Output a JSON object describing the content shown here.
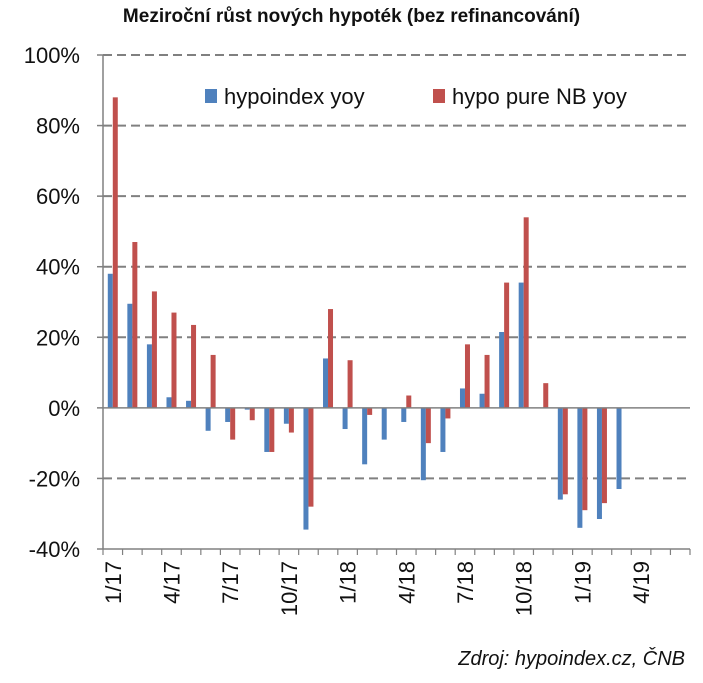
{
  "chart_data": {
    "type": "bar",
    "title": "Meziroční růst nových hypoték (bez refinancování)",
    "xlabel": "",
    "ylabel": "",
    "ylim": [
      -40,
      100
    ],
    "yticks": [
      "100%",
      "80%",
      "60%",
      "40%",
      "20%",
      "0%",
      "-20%",
      "-40%"
    ],
    "ytick_values": [
      100,
      80,
      60,
      40,
      20,
      0,
      -20,
      -40
    ],
    "grid": true,
    "legend_position": "top-right",
    "categories": [
      "1/17",
      "2/17",
      "3/17",
      "4/17",
      "5/17",
      "6/17",
      "7/17",
      "8/17",
      "9/17",
      "10/17",
      "11/17",
      "12/17",
      "1/18",
      "2/18",
      "3/18",
      "4/18",
      "5/18",
      "6/18",
      "7/18",
      "8/18",
      "9/18",
      "10/18",
      "11/18",
      "12/18",
      "1/19",
      "2/19",
      "3/19",
      "4/19",
      "5/19",
      "6/19"
    ],
    "xtick_labels": [
      "1/17",
      "4/17",
      "7/17",
      "10/17",
      "1/18",
      "4/18",
      "7/18",
      "10/18",
      "1/19",
      "4/19"
    ],
    "xtick_indices": [
      0,
      3,
      6,
      9,
      12,
      15,
      18,
      21,
      24,
      27
    ],
    "series": [
      {
        "name": "hypoindex yoy",
        "color": "#4F81BD",
        "values": [
          38,
          29.5,
          18,
          3,
          2,
          -6.5,
          -4,
          -0.5,
          -12.5,
          -4.5,
          -34.5,
          14,
          -6,
          -16,
          -9,
          -4,
          -20.5,
          -12.5,
          5.5,
          4,
          21.5,
          35.5,
          null,
          -26,
          -34,
          -31.5,
          -23,
          null,
          null,
          null
        ]
      },
      {
        "name": "hypo pure NB yoy",
        "color": "#C0504D",
        "values": [
          88,
          47,
          33,
          27,
          23.5,
          15,
          -9,
          -3.5,
          -12.5,
          -7,
          -28,
          28,
          13.5,
          -2,
          null,
          3.5,
          -10,
          -3,
          18,
          15,
          35.5,
          54,
          7,
          -24.5,
          -29,
          -27,
          null,
          null,
          null,
          null
        ]
      }
    ],
    "source": "Zdroj: hypoindex.cz, ČNB"
  }
}
